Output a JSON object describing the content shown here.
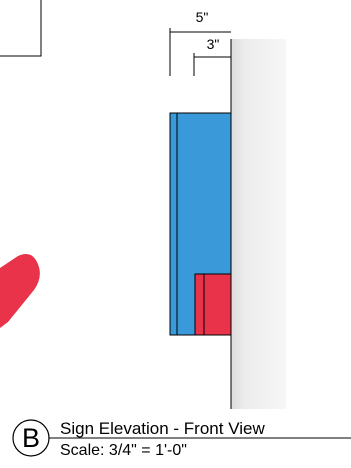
{
  "dimensions": {
    "outer_label": "5\"",
    "inner_label": "3\""
  },
  "title_block": {
    "bubble_letter": "B",
    "title": "Sign Elevation - Front View",
    "scale": "Scale: 3/4\" = 1'-0\""
  },
  "colors": {
    "sign_blue": "#3a9ad9",
    "accent_red": "#e8334a",
    "wall_gray": "#e6e6e6",
    "line": "#000000"
  }
}
